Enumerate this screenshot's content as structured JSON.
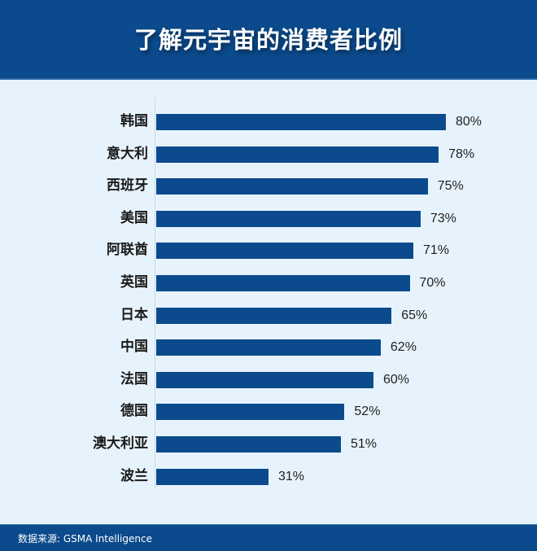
{
  "header": {
    "title": "了解元宇宙的消费者比例"
  },
  "footer": {
    "source": "数据来源: GSMA Intelligence"
  },
  "colors": {
    "header_bg": "#0b4a8c",
    "bar": "#0b4a8c",
    "plot_bg": "#e7f3fc"
  },
  "chart_data": {
    "type": "bar",
    "orientation": "horizontal",
    "title": "了解元宇宙的消费者比例",
    "xlabel": "",
    "ylabel": "",
    "unit": "%",
    "grid": false,
    "legend": null,
    "categories": [
      "韩国",
      "意大利",
      "西班牙",
      "美国",
      "阿联酋",
      "英国",
      "日本",
      "中国",
      "法国",
      "德国",
      "澳大利亚",
      "波兰"
    ],
    "values": [
      80,
      78,
      75,
      73,
      71,
      70,
      65,
      62,
      60,
      52,
      51,
      31
    ],
    "value_labels": [
      "80%",
      "78%",
      "75%",
      "73%",
      "71%",
      "70%",
      "65%",
      "62%",
      "60%",
      "52%",
      "51%",
      "31%"
    ],
    "xlim": [
      0,
      100
    ],
    "source": "数据来源: GSMA Intelligence"
  }
}
